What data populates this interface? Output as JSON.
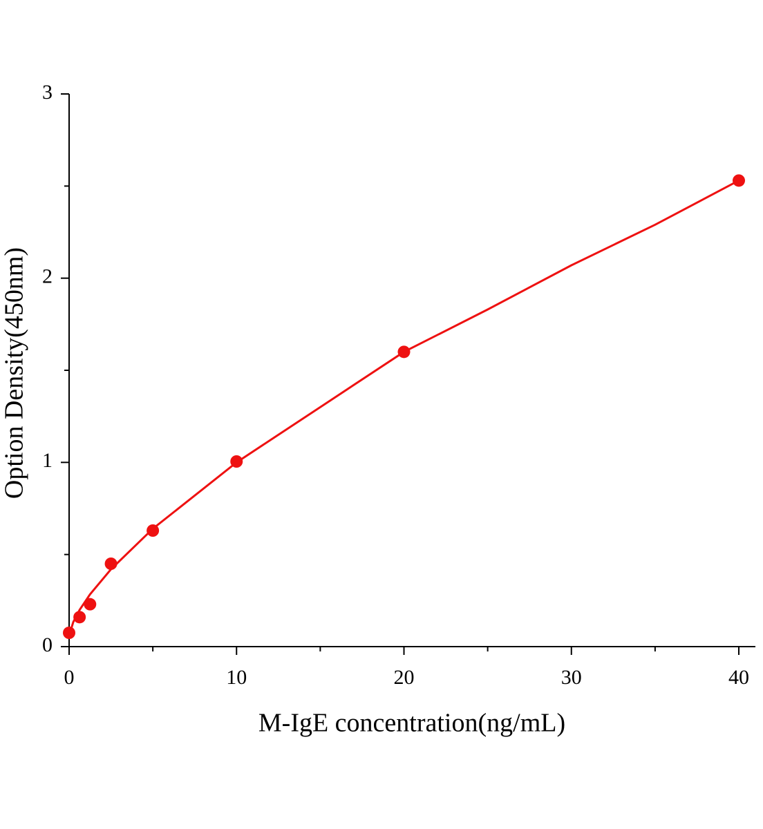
{
  "chart_data": {
    "type": "scatter",
    "xlabel": "M-IgE concentration(ng/mL)",
    "ylabel": "Option Density(450nm)",
    "series": [
      {
        "style": "points",
        "color": "#ee1111",
        "x": [
          0,
          0.625,
          1.25,
          2.5,
          5,
          10,
          20,
          40
        ],
        "values": [
          0.075,
          0.16,
          0.23,
          0.45,
          0.63,
          1.005,
          1.6,
          2.53
        ]
      },
      {
        "style": "line",
        "color": "#ee1111",
        "x": [
          0,
          0.25,
          0.625,
          1.25,
          2.5,
          5,
          10,
          15,
          20,
          25,
          30,
          35,
          40
        ],
        "values": [
          0.06,
          0.134,
          0.199,
          0.284,
          0.42,
          0.64,
          1.0,
          1.3,
          1.6,
          1.83,
          2.07,
          2.29,
          2.53
        ]
      }
    ],
    "xlim": [
      0,
      41
    ],
    "xticks": [
      0,
      10,
      20,
      30,
      40
    ],
    "xminorticks": [
      5,
      15,
      25,
      35
    ],
    "ylim": [
      0,
      3
    ],
    "yticks": [
      0,
      1,
      2,
      3
    ],
    "yminorticks": [
      0.5,
      1.5,
      2.5
    ],
    "grid": false
  }
}
